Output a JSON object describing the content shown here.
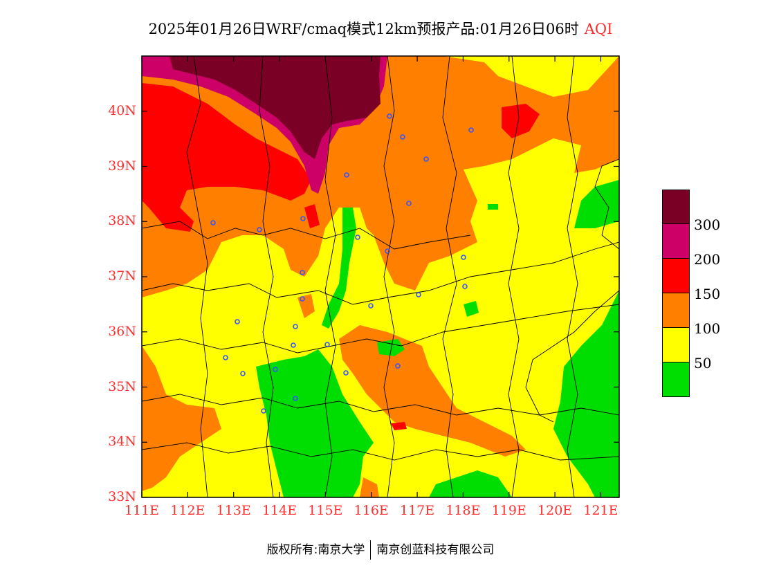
{
  "title": {
    "text": "2025年01月26日WRF/cmaq模式12km预报产品:01月26日06时",
    "variable": "AQI"
  },
  "axes": {
    "lat_labels": [
      "40N",
      "39N",
      "38N",
      "37N",
      "36N",
      "35N",
      "34N",
      "33N"
    ],
    "lon_labels": [
      "111E",
      "112E",
      "113E",
      "114E",
      "115E",
      "116E",
      "117E",
      "118E",
      "119E",
      "120E",
      "121E"
    ],
    "lat_range": [
      33,
      41
    ],
    "lon_range": [
      111,
      121.4
    ]
  },
  "legend": {
    "colors": [
      "#7a0026",
      "#cc0066",
      "#ff0000",
      "#ff7f00",
      "#ffff00",
      "#00dd00"
    ],
    "labels": [
      "300",
      "200",
      "150",
      "100",
      "50"
    ]
  },
  "footer": {
    "left": "版权所有:南京大学",
    "right": "南京创蓝科技有限公司"
  },
  "map": {
    "base_color": "#ffff00",
    "city_marker_color": "#3355ff"
  }
}
